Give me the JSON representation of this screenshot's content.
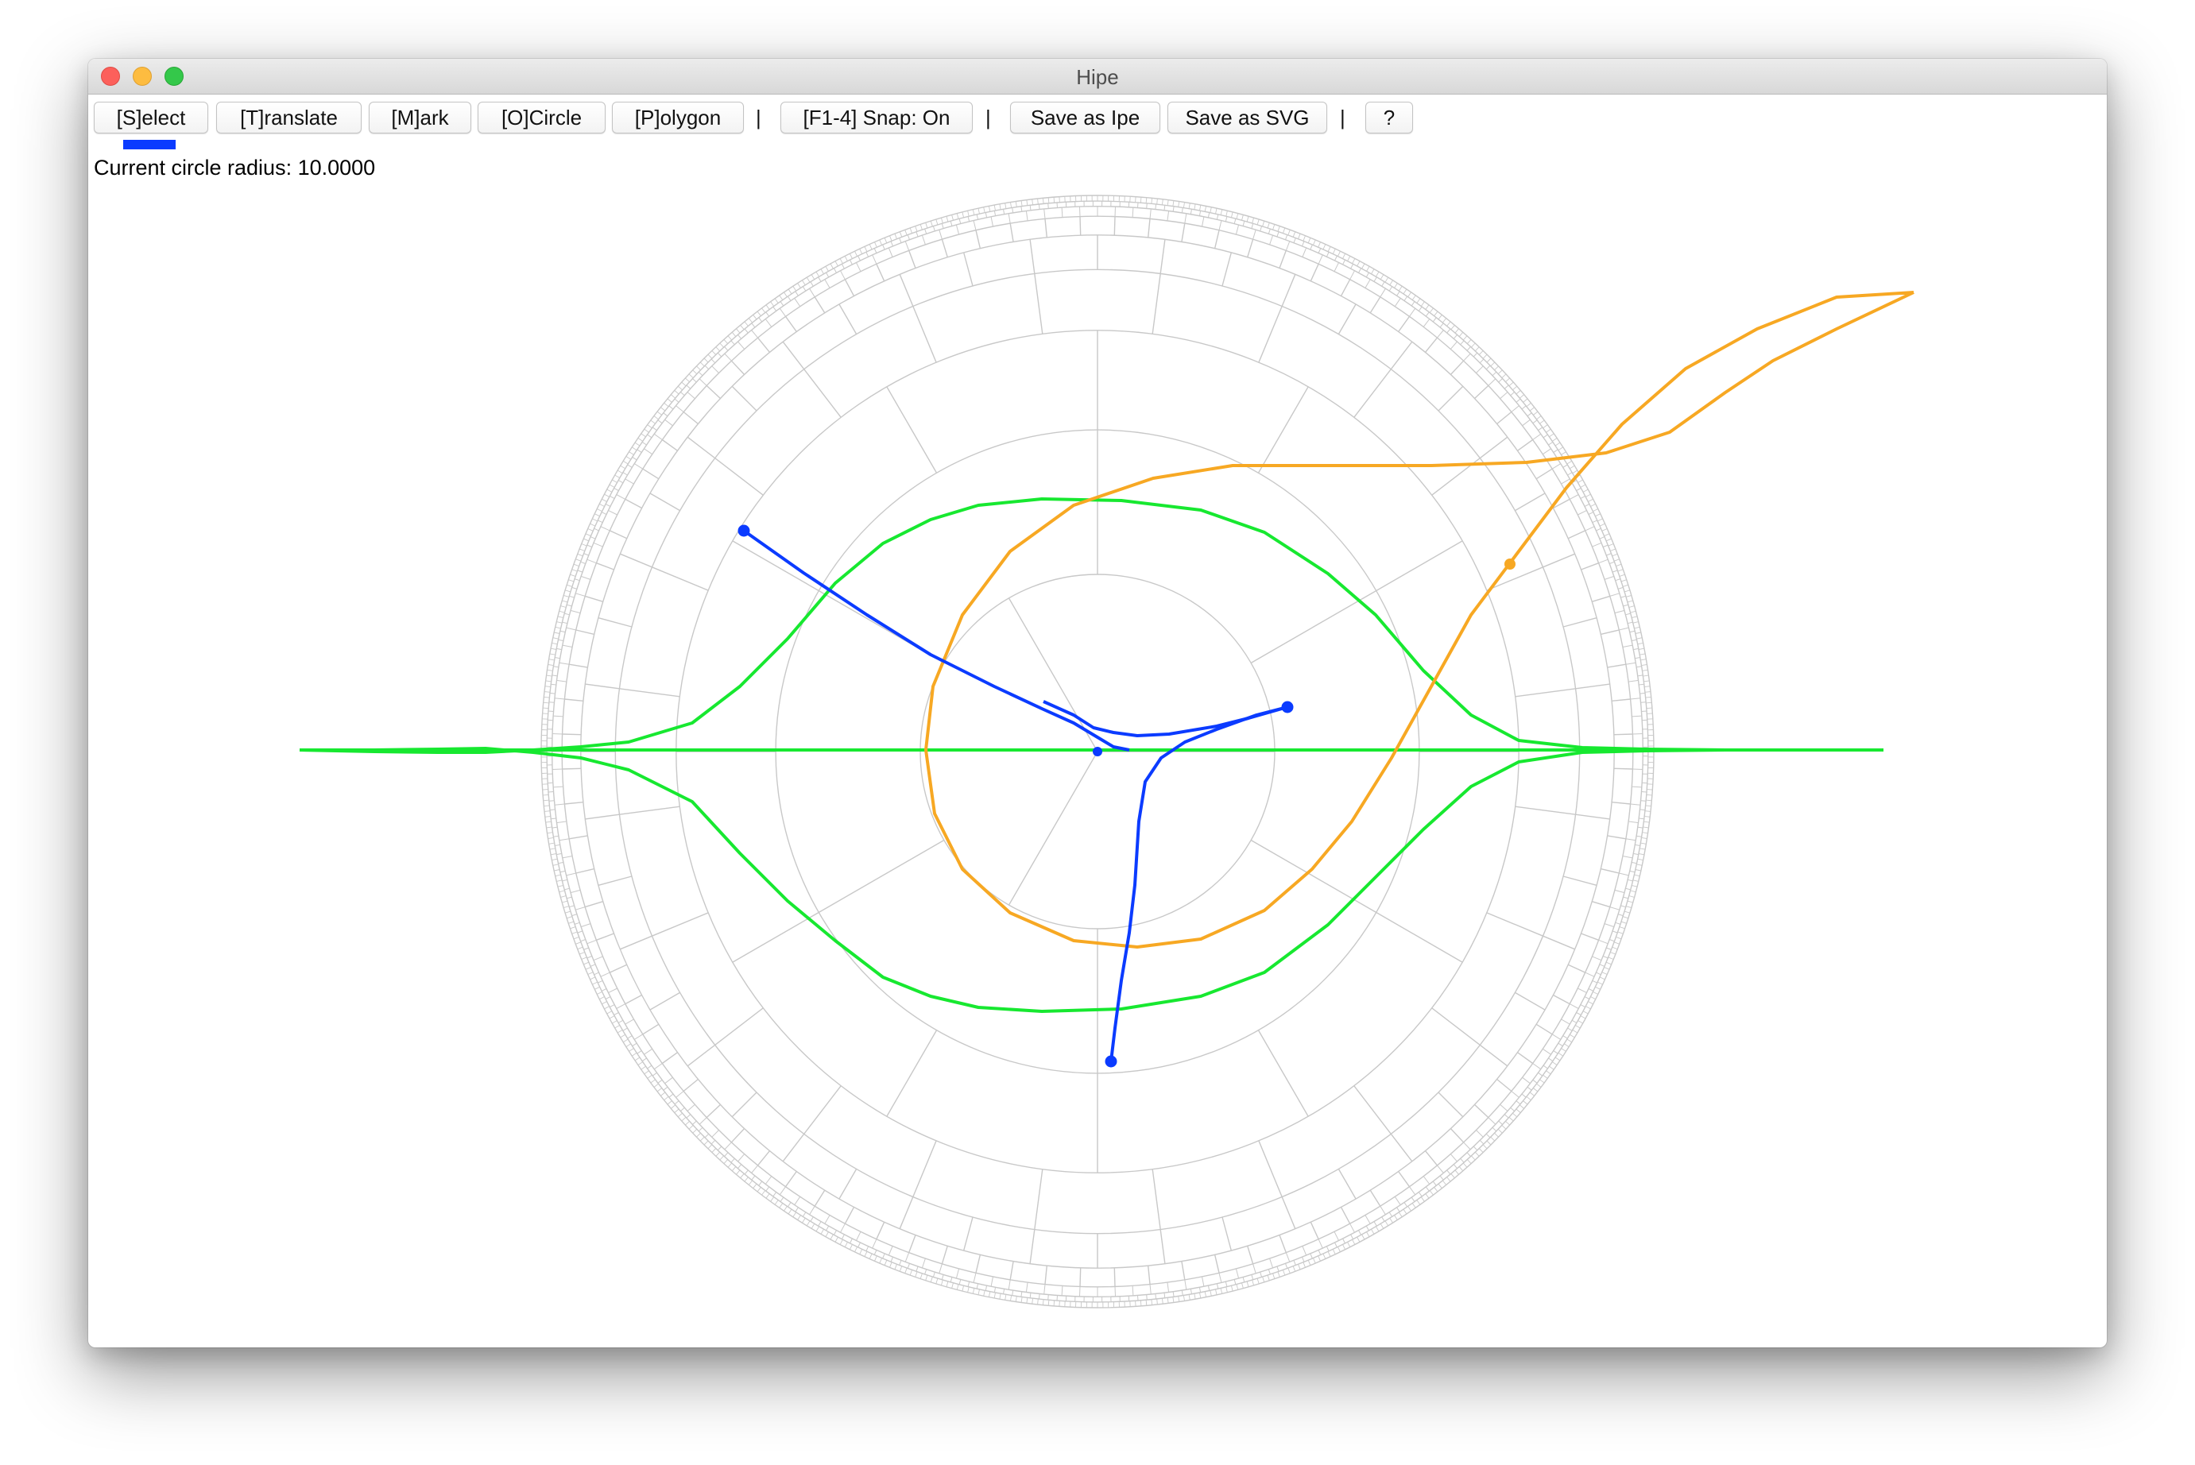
{
  "window": {
    "title": "Hipe"
  },
  "toolbar": {
    "buttons": [
      {
        "label": "[S]elect",
        "active": true
      },
      {
        "label": "[T]ranslate"
      },
      {
        "label": "[M]ark"
      },
      {
        "label": "[O]Circle"
      },
      {
        "label": "[P]olygon"
      },
      {
        "label": "[F1-4] Snap: On"
      },
      {
        "label": "Save as Ipe"
      },
      {
        "label": "Save as SVG"
      },
      {
        "label": "?"
      }
    ],
    "separator": "|"
  },
  "status": {
    "text": "Current circle radius: 10.0000"
  },
  "colors": {
    "grid": "#c8c8c8",
    "geodesics": "#0b3bff",
    "green_curves": "#17e830",
    "orange_curves": "#f7a823",
    "active_indicator": "#0b3bff"
  }
}
